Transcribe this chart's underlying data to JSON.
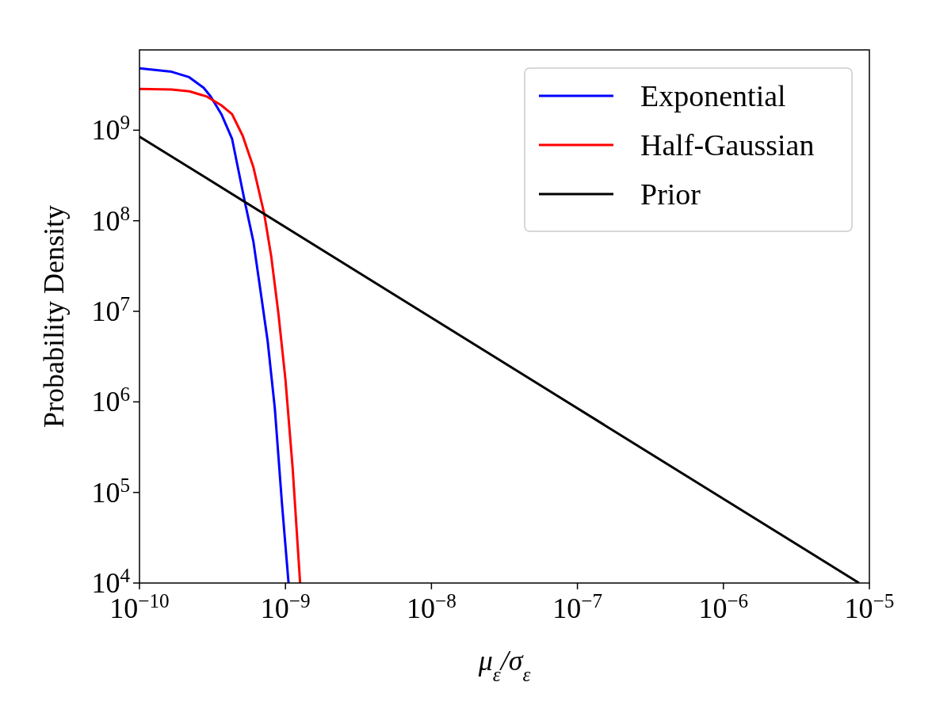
{
  "chart_data": {
    "type": "line",
    "xlabel": "μ$_{ε}$/σ$_{ε}$",
    "ylabel": "Probability Density",
    "log": "xy",
    "grid": false,
    "legend": "top right",
    "line_style": "solid",
    "marker": "none",
    "xlim": [
      1e-10,
      1e-05
    ],
    "ylim": [
      10000.0,
      7700000000.0
    ],
    "xticks": [
      {
        "value": 1e-10,
        "label": "10$^{−10}$"
      },
      {
        "value": 1e-09,
        "label": "10$^{−9}$"
      },
      {
        "value": 1e-08,
        "label": "10$^{−8}$"
      },
      {
        "value": 1e-07,
        "label": "10$^{−7}$"
      },
      {
        "value": 1e-06,
        "label": "10$^{−6}$"
      },
      {
        "value": 1e-05,
        "label": "10$^{−5}$"
      }
    ],
    "yticks": [
      {
        "value": 10000.0,
        "label": "10$^{4}$"
      },
      {
        "value": 100000.0,
        "label": "10$^{5}$"
      },
      {
        "value": 1000000.0,
        "label": "10$^{6}$"
      },
      {
        "value": 10000000.0,
        "label": "10$^{7}$"
      },
      {
        "value": 100000000.0,
        "label": "10$^{8}$"
      },
      {
        "value": 1000000000.0,
        "label": "10$^{9}$"
      }
    ],
    "series": [
      {
        "name": "Exponential",
        "color": "#0000ff",
        "x": [
          1e-10,
          1.66e-10,
          2.19e-10,
          2.75e-10,
          3.08e-10,
          3.64e-10,
          4.31e-10,
          5.25e-10,
          6.03e-10,
          6.75e-10,
          7.55e-10,
          8.45e-10,
          9.46e-10,
          1.05e-09
        ],
        "values": [
          4830000000.0,
          4420000000.0,
          3850000000.0,
          2940000000.0,
          2350000000.0,
          1500000000.0,
          800000000.0,
          166000000.0,
          59000000.0,
          16700000.0,
          4700000.0,
          860000.0,
          76000.0,
          10000.0
        ]
      },
      {
        "name": "Half-Gaussian",
        "color": "#ff0000",
        "x": [
          1e-10,
          1.66e-10,
          2.19e-10,
          2.9e-10,
          3.64e-10,
          4.31e-10,
          5.09e-10,
          6.03e-10,
          7.14e-10,
          7.98e-10,
          8.93e-10,
          1e-09,
          1.12e-09,
          1.26e-09
        ],
        "values": [
          2860000000.0,
          2810000000.0,
          2690000000.0,
          2350000000.0,
          1880000000.0,
          1500000000.0,
          870000000.0,
          390000000.0,
          121000000.0,
          41000000.0,
          9700000.0,
          1760000.0,
          186000.0,
          10000.0
        ]
      },
      {
        "name": "Prior",
        "color": "#000000",
        "x": [
          1e-10,
          8.5e-06
        ],
        "values": [
          850000000.0,
          10000.0
        ]
      }
    ]
  }
}
